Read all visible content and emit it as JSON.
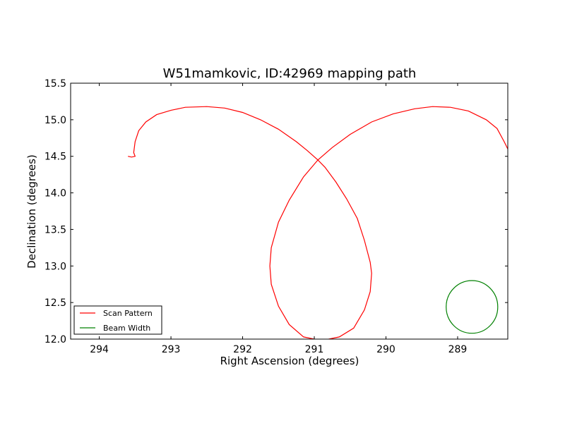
{
  "chart_data": {
    "type": "line",
    "title": "W51mamkovic, ID:42969 mapping path",
    "xlabel": "Right Ascension (degrees)",
    "ylabel": "Declination (degrees)",
    "xlim": [
      294.4,
      288.3
    ],
    "ylim": [
      12.0,
      15.5
    ],
    "x_inverted": true,
    "xticks": [
      294,
      293,
      292,
      291,
      290,
      289
    ],
    "xtick_labels": [
      "294",
      "293",
      "292",
      "291",
      "290",
      "289"
    ],
    "yticks": [
      12.0,
      12.5,
      13.0,
      13.5,
      14.0,
      14.5,
      15.0,
      15.5
    ],
    "ytick_labels": [
      "12.0",
      "12.5",
      "13.0",
      "13.5",
      "14.0",
      "14.5",
      "15.0",
      "15.5"
    ],
    "grid": false,
    "legend_position": "lower-left",
    "series": [
      {
        "name": "Scan Pattern",
        "color": "#ff0000",
        "x": [
          293.6,
          293.55,
          293.5,
          293.52,
          293.5,
          293.45,
          293.35,
          293.2,
          293.0,
          292.8,
          292.5,
          292.25,
          292.0,
          291.75,
          291.5,
          291.25,
          291.1,
          290.95,
          290.85,
          290.7,
          290.55,
          290.4,
          290.3,
          290.22,
          290.2,
          290.22,
          290.3,
          290.45,
          290.65,
          290.9,
          291.15,
          291.35,
          291.5,
          291.6,
          291.62,
          291.6,
          291.5,
          291.35,
          291.15,
          290.95,
          290.75,
          290.5,
          290.2,
          289.9,
          289.6,
          289.35,
          289.1,
          288.85,
          288.6,
          288.45,
          288.35,
          288.3
        ],
        "y": [
          14.5,
          14.49,
          14.5,
          14.55,
          14.7,
          14.85,
          14.97,
          15.07,
          15.13,
          15.17,
          15.18,
          15.16,
          15.1,
          15.0,
          14.87,
          14.7,
          14.58,
          14.45,
          14.35,
          14.15,
          13.92,
          13.65,
          13.35,
          13.05,
          12.9,
          12.65,
          12.4,
          12.15,
          12.03,
          11.98,
          12.03,
          12.2,
          12.45,
          12.75,
          13.0,
          13.25,
          13.6,
          13.9,
          14.22,
          14.45,
          14.62,
          14.8,
          14.97,
          15.08,
          15.15,
          15.18,
          15.17,
          15.12,
          15.0,
          14.88,
          14.7,
          14.6
        ]
      },
      {
        "name": "Beam Width",
        "color": "#008000",
        "shape": "circle",
        "center": [
          288.8,
          12.44
        ],
        "radius_deg": 0.36
      }
    ]
  }
}
